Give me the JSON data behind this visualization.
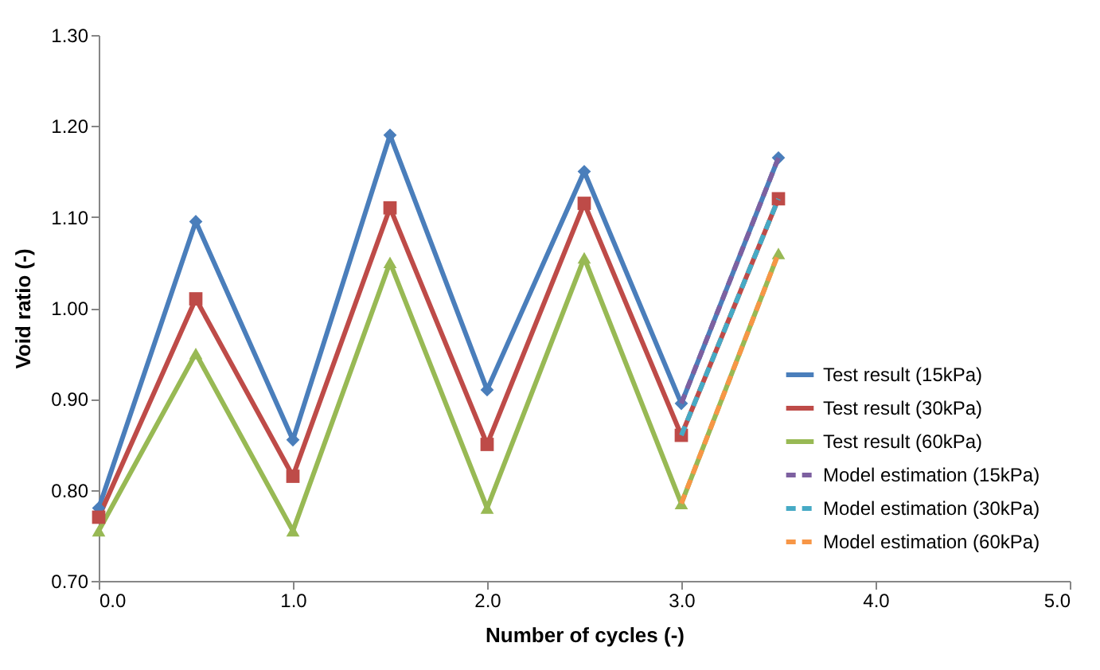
{
  "chart_data": {
    "type": "line",
    "xlabel": "Number of cycles (-)",
    "ylabel": "Void ratio (-)",
    "xlim": [
      0,
      5
    ],
    "xticks": [
      {
        "value": 0,
        "label": "0.0"
      },
      {
        "value": 1,
        "label": "1.0"
      },
      {
        "value": 2,
        "label": "2.0"
      },
      {
        "value": 3,
        "label": "3.0"
      },
      {
        "value": 4,
        "label": "4.0"
      },
      {
        "value": 5,
        "label": "5.0"
      }
    ],
    "ylim": [
      0.7,
      1.3
    ],
    "yticks": [
      {
        "value": 0.7,
        "label": "0.70"
      },
      {
        "value": 0.8,
        "label": "0.80"
      },
      {
        "value": 0.9,
        "label": "0.90"
      },
      {
        "value": 1.0,
        "label": "1.00"
      },
      {
        "value": 1.1,
        "label": "1.10"
      },
      {
        "value": 1.2,
        "label": "1.20"
      },
      {
        "value": 1.3,
        "label": "1.30"
      }
    ],
    "grid": false,
    "legend": "bottom right",
    "x": [
      0,
      0.5,
      1,
      1.5,
      2,
      2.5,
      3,
      3.5
    ],
    "series": [
      {
        "name": "Test result (15kPa)",
        "color": "#4a7ebb",
        "marker": "diamond",
        "line_style": "solid",
        "values": [
          0.78,
          1.095,
          0.855,
          1.19,
          0.91,
          1.15,
          0.895,
          1.165
        ]
      },
      {
        "name": "Test result (30kPa)",
        "color": "#be4b48",
        "marker": "square",
        "line_style": "solid",
        "values": [
          0.77,
          1.01,
          0.815,
          1.11,
          0.85,
          1.115,
          0.86,
          1.12
        ]
      },
      {
        "name": "Test result (60kPa)",
        "color": "#98b954",
        "marker": "triangle",
        "line_style": "solid",
        "values": [
          0.755,
          0.95,
          0.755,
          1.05,
          0.78,
          1.055,
          0.785,
          1.06
        ]
      },
      {
        "name": "Model estimation (15kPa)",
        "color": "#7d60a0",
        "marker": "none",
        "line_style": "dashed",
        "values": [
          null,
          null,
          null,
          null,
          null,
          null,
          0.895,
          1.165
        ]
      },
      {
        "name": "Model estimation (30kPa)",
        "color": "#46aac5",
        "marker": "none",
        "line_style": "dashed",
        "values": [
          null,
          null,
          null,
          null,
          null,
          null,
          0.86,
          1.12
        ]
      },
      {
        "name": "Model estimation (60kPa)",
        "color": "#f79646",
        "marker": "none",
        "line_style": "dashed",
        "values": [
          null,
          null,
          null,
          null,
          null,
          null,
          0.785,
          1.06
        ]
      }
    ]
  }
}
